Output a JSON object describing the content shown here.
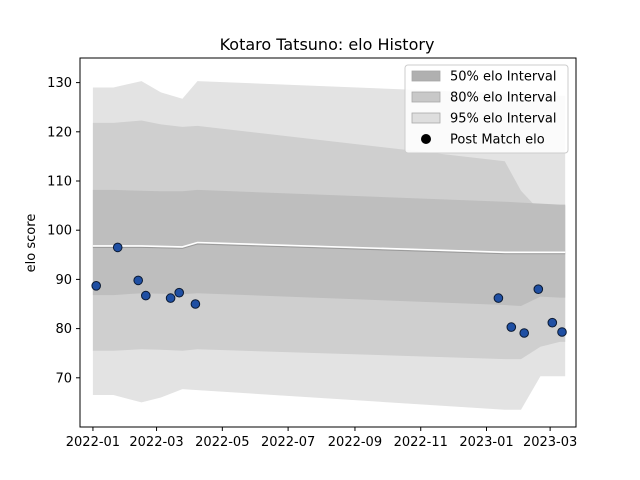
{
  "chart_data": {
    "type": "line",
    "title": "Kotaro Tatsuno: elo History",
    "xlabel": "",
    "ylabel": "elo score",
    "x_axis": "date",
    "xlim": [
      "2021-12-20",
      "2023-03-25"
    ],
    "ylim": [
      60,
      135
    ],
    "x_ticks": [
      "2022-01",
      "2022-03",
      "2022-05",
      "2022-07",
      "2022-09",
      "2022-11",
      "2023-01",
      "2023-03"
    ],
    "y_ticks": [
      70,
      80,
      90,
      100,
      110,
      120,
      130
    ],
    "legend": {
      "placement": "top-right",
      "entries": [
        "50% elo Interval",
        "80% elo Interval",
        "95% elo Interval",
        "Post Match elo"
      ]
    },
    "intervals": [
      {
        "name": "95% elo Interval",
        "color": "#e3e3e3",
        "dates": [
          "2022-01-01",
          "2022-01-20",
          "2022-02-15",
          "2022-03-05",
          "2022-03-25",
          "2022-04-08",
          "2023-01-18",
          "2023-02-02",
          "2023-02-20",
          "2023-03-10",
          "2023-03-15"
        ],
        "upper": [
          129.0,
          129.0,
          130.3,
          128.0,
          126.7,
          130.3,
          127.8,
          127.7,
          127.5,
          127.3,
          127.3
        ],
        "lower": [
          66.5,
          66.5,
          65.0,
          66.0,
          67.7,
          67.5,
          63.5,
          63.5,
          70.3,
          70.3,
          70.3
        ]
      },
      {
        "name": "80% elo Interval",
        "color": "#cfcfcf",
        "dates": [
          "2022-01-01",
          "2022-01-20",
          "2022-02-15",
          "2022-03-05",
          "2022-03-25",
          "2022-04-08",
          "2023-01-18",
          "2023-02-02",
          "2023-02-20",
          "2023-03-10",
          "2023-03-15"
        ],
        "upper": [
          121.8,
          121.8,
          122.3,
          121.5,
          121.0,
          121.2,
          114.0,
          108.0,
          103.8,
          105.0,
          105.0
        ],
        "lower": [
          75.5,
          75.5,
          75.8,
          75.7,
          75.5,
          75.8,
          73.8,
          73.8,
          76.3,
          77.3,
          77.3
        ]
      },
      {
        "name": "50% elo Interval",
        "color": "#bebebe",
        "dates": [
          "2022-01-01",
          "2022-01-20",
          "2022-02-15",
          "2022-03-05",
          "2022-03-25",
          "2022-04-08",
          "2023-01-18",
          "2023-02-02",
          "2023-02-20",
          "2023-03-10",
          "2023-03-15"
        ],
        "upper": [
          108.2,
          108.2,
          108.0,
          107.9,
          107.9,
          108.2,
          105.8,
          105.6,
          105.4,
          105.2,
          105.2
        ],
        "lower": [
          86.8,
          86.8,
          87.2,
          87.1,
          87.0,
          87.2,
          84.8,
          84.6,
          86.5,
          86.3,
          86.3
        ]
      }
    ],
    "mean_line": {
      "name": "",
      "color": "#ffffff",
      "dates": [
        "2022-01-01",
        "2022-02-15",
        "2022-03-25",
        "2022-04-08",
        "2023-01-18",
        "2023-03-15"
      ],
      "values": [
        96.8,
        96.8,
        96.6,
        97.5,
        95.5,
        95.5
      ]
    },
    "series": [
      {
        "name": "Post Match elo",
        "color": "#1f4fa3",
        "dates": [
          "2022-01-04",
          "2022-01-24",
          "2022-02-12",
          "2022-02-19",
          "2022-03-14",
          "2022-03-22",
          "2022-04-06",
          "2023-01-12",
          "2023-01-24",
          "2023-02-05",
          "2023-02-18",
          "2023-03-03",
          "2023-03-12"
        ],
        "values": [
          88.7,
          96.5,
          89.8,
          86.7,
          86.2,
          87.3,
          85.0,
          86.2,
          80.3,
          79.1,
          88.0,
          81.2,
          79.3
        ]
      }
    ]
  }
}
